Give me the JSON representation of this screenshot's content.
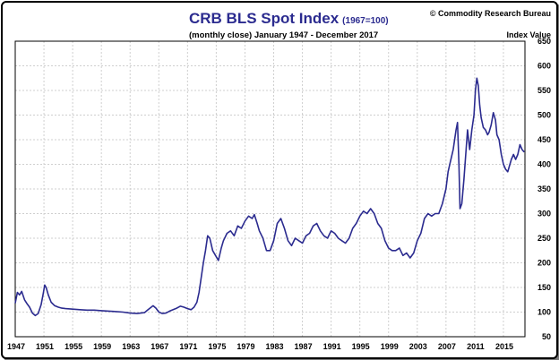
{
  "chart_data": {
    "type": "line",
    "title": "CRB BLS Spot Index",
    "title_suffix": "(1967=100)",
    "subtitle": "(monthly close) January 1947 - December 2017",
    "copyright": "© Commodity Research Bureau",
    "ylabel": "Index Value",
    "ylim": [
      50,
      650
    ],
    "yticks": [
      50,
      100,
      150,
      200,
      250,
      300,
      350,
      400,
      450,
      500,
      550,
      600,
      650
    ],
    "xlim": [
      1947,
      2018
    ],
    "xticks": [
      "1947",
      "1951",
      "1955",
      "1959",
      "1963",
      "1967",
      "1971",
      "1975",
      "1979",
      "1983",
      "1987",
      "1991",
      "1995",
      "1999",
      "2003",
      "2007",
      "2011",
      "2015"
    ],
    "grid": true,
    "line_color": "#2b2b8f",
    "series": [
      {
        "x": [
          1947.0,
          1947.3,
          1947.6,
          1947.9,
          1948.3,
          1948.6,
          1949.0,
          1949.4,
          1949.8,
          1950.2,
          1950.6,
          1950.9,
          1951.1,
          1951.3,
          1951.6,
          1952.0,
          1952.5,
          1953.0,
          1953.5,
          1954.0,
          1955.0,
          1956.0,
          1957.0,
          1958.0,
          1959.0,
          1960.0,
          1961.0,
          1962.0,
          1963.0,
          1964.0,
          1965.0,
          1965.5,
          1966.2,
          1966.6,
          1967.0,
          1967.5,
          1968.0,
          1968.5,
          1969.0,
          1969.5,
          1970.0,
          1970.5,
          1971.0,
          1971.5,
          1971.9,
          1972.3,
          1972.6,
          1972.9,
          1973.2,
          1973.5,
          1973.8,
          1974.1,
          1974.5,
          1974.9,
          1975.3,
          1975.7,
          1976.0,
          1976.5,
          1977.0,
          1977.5,
          1978.0,
          1978.5,
          1979.0,
          1979.5,
          1980.0,
          1980.3,
          1980.7,
          1981.0,
          1981.5,
          1982.0,
          1982.5,
          1983.0,
          1983.5,
          1984.0,
          1984.5,
          1985.0,
          1985.5,
          1986.0,
          1986.5,
          1987.0,
          1987.5,
          1988.0,
          1988.5,
          1989.0,
          1989.5,
          1990.0,
          1990.5,
          1991.0,
          1991.5,
          1992.0,
          1992.5,
          1993.0,
          1993.5,
          1994.0,
          1994.5,
          1995.0,
          1995.5,
          1996.0,
          1996.5,
          1997.0,
          1997.5,
          1998.0,
          1998.5,
          1999.0,
          1999.5,
          2000.0,
          2000.5,
          2001.0,
          2001.5,
          2002.0,
          2002.5,
          2003.0,
          2003.5,
          2004.0,
          2004.5,
          2005.0,
          2005.5,
          2006.0,
          2006.5,
          2007.0,
          2007.3,
          2007.6,
          2008.0,
          2008.2,
          2008.4,
          2008.6,
          2008.8,
          2008.95,
          2009.2,
          2009.5,
          2009.8,
          2010.0,
          2010.3,
          2010.6,
          2010.9,
          2011.1,
          2011.3,
          2011.5,
          2011.7,
          2011.9,
          2012.2,
          2012.5,
          2012.8,
          2013.0,
          2013.3,
          2013.6,
          2013.9,
          2014.1,
          2014.4,
          2014.7,
          2015.0,
          2015.3,
          2015.6,
          2015.9,
          2016.1,
          2016.4,
          2016.7,
          2017.0,
          2017.3,
          2017.6,
          2017.9
        ],
        "y": [
          118,
          140,
          135,
          142,
          125,
          118,
          110,
          98,
          93,
          97,
          115,
          138,
          155,
          150,
          135,
          120,
          113,
          110,
          108,
          107,
          106,
          105,
          104,
          104,
          103,
          102,
          101,
          100,
          98,
          97,
          99,
          105,
          113,
          108,
          100,
          97,
          98,
          102,
          105,
          108,
          112,
          110,
          107,
          105,
          110,
          120,
          140,
          170,
          200,
          225,
          255,
          250,
          225,
          215,
          205,
          230,
          245,
          260,
          265,
          255,
          275,
          270,
          285,
          295,
          290,
          298,
          280,
          265,
          250,
          225,
          225,
          245,
          280,
          290,
          270,
          245,
          235,
          250,
          245,
          240,
          255,
          260,
          275,
          280,
          265,
          255,
          250,
          265,
          260,
          250,
          245,
          240,
          250,
          270,
          280,
          295,
          305,
          300,
          310,
          300,
          280,
          270,
          245,
          230,
          225,
          225,
          230,
          215,
          220,
          210,
          220,
          245,
          260,
          290,
          300,
          295,
          300,
          300,
          320,
          350,
          385,
          405,
          430,
          450,
          470,
          485,
          400,
          310,
          320,
          370,
          430,
          470,
          430,
          470,
          500,
          550,
          575,
          560,
          520,
          495,
          475,
          470,
          460,
          465,
          480,
          505,
          490,
          460,
          450,
          420,
          400,
          390,
          385,
          400,
          410,
          420,
          410,
          420,
          440,
          430,
          425
        ]
      }
    ]
  }
}
